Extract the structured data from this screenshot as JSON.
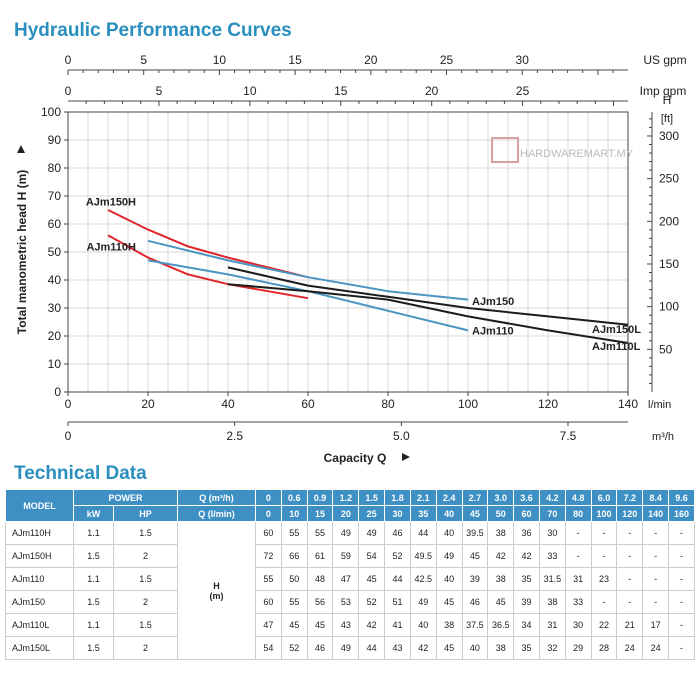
{
  "titles": {
    "curves": "Hydraulic Performance Curves",
    "tech": "Technical Data"
  },
  "watermark": "HARDWAREMART.MY",
  "chart_data": {
    "type": "line",
    "title": "Hydraulic Performance Curves",
    "xlabel": "Capacity Q",
    "ylabel": "Total manometric head H (m)",
    "x_unit": "l/min",
    "xlim": [
      0,
      140
    ],
    "ylim": [
      0,
      100
    ],
    "x_ticks": [
      0,
      20,
      40,
      60,
      80,
      100,
      120,
      140
    ],
    "y_ticks": [
      0,
      10,
      20,
      30,
      40,
      50,
      60,
      70,
      80,
      90,
      100
    ],
    "secondary_axes": {
      "us_gpm": {
        "label": "US gpm",
        "ticks": [
          0,
          5,
          10,
          15,
          20,
          25,
          30
        ],
        "factor": 3.785
      },
      "imp_gpm": {
        "label": "Imp gpm",
        "ticks": [
          0,
          5,
          10,
          15,
          20,
          25
        ],
        "factor": 4.546
      },
      "m3h": {
        "label": "m³/h",
        "ticks": [
          "0",
          "2.5",
          "5.0",
          "7.5"
        ],
        "values": [
          0,
          2.5,
          5,
          7.5
        ],
        "factor": 16.6667
      },
      "feet": {
        "label_top": "H",
        "label_bottom": "[ft]",
        "ticks": [
          50,
          100,
          150,
          200,
          250,
          300
        ],
        "factor": 0.3048
      }
    },
    "grid": true,
    "series": [
      {
        "name": "AJm150H",
        "color": "#e0262b",
        "x": [
          10,
          20,
          30,
          40,
          50,
          60
        ],
        "y": [
          65,
          58,
          52,
          48,
          44.5,
          41
        ]
      },
      {
        "name": "AJm110H",
        "color": "#e0262b",
        "x": [
          10,
          20,
          30,
          40,
          50,
          60
        ],
        "y": [
          56,
          48,
          42,
          38.5,
          36,
          33.5
        ]
      },
      {
        "name": "AJm150",
        "color": "#4b95c2",
        "x": [
          20,
          40,
          60,
          80,
          100
        ],
        "y": [
          54,
          47,
          41,
          36,
          33
        ]
      },
      {
        "name": "AJm110",
        "color": "#4b95c2",
        "x": [
          20,
          40,
          60,
          80,
          100
        ],
        "y": [
          47,
          42,
          36,
          29,
          22
        ]
      },
      {
        "name": "AJm150L",
        "color": "#1c1c1c",
        "x": [
          40,
          60,
          80,
          100,
          120,
          140
        ],
        "y": [
          44.5,
          38,
          34,
          30,
          27,
          24
        ]
      },
      {
        "name": "AJm110L",
        "color": "#1c1c1c",
        "x": [
          40,
          60,
          80,
          100,
          120,
          140
        ],
        "y": [
          38.5,
          36,
          33,
          27,
          22,
          17.5
        ]
      }
    ],
    "series_labels": [
      {
        "text": "AJm150H",
        "x": 17,
        "y": 68,
        "anchor": "end"
      },
      {
        "text": "AJm110H",
        "x": 17,
        "y": 52,
        "anchor": "end"
      },
      {
        "text": "AJm150",
        "x": 101,
        "y": 32.5,
        "anchor": "start"
      },
      {
        "text": "AJm110",
        "x": 101,
        "y": 22,
        "anchor": "start"
      },
      {
        "text": "AJm150L",
        "x": 131,
        "y": 22.5,
        "anchor": "start"
      },
      {
        "text": "AJm110L",
        "x": 131,
        "y": 16.5,
        "anchor": "start"
      }
    ]
  },
  "table": {
    "model_header": "MODEL",
    "power_header": "POWER",
    "kw_header": "kW",
    "hp_header": "HP",
    "q_m3h_header": "Q (m³/h)",
    "q_lmin_header": "Q (l/min)",
    "q_m3h": [
      "0",
      "0.6",
      "0.9",
      "1.2",
      "1.5",
      "1.8",
      "2.1",
      "2.4",
      "2.7",
      "3.0",
      "3.6",
      "4.2",
      "4.8",
      "6.0",
      "7.2",
      "8.4",
      "9.6"
    ],
    "q_lmin": [
      "0",
      "10",
      "15",
      "20",
      "25",
      "30",
      "35",
      "40",
      "45",
      "50",
      "60",
      "70",
      "80",
      "100",
      "120",
      "140",
      "160"
    ],
    "h_unit_top": "H",
    "h_unit_bottom": "(m)",
    "rows": [
      {
        "model": "AJm110H",
        "kw": "1.1",
        "hp": "1.5",
        "values": [
          "60",
          "55",
          "55",
          "49",
          "49",
          "46",
          "44",
          "40",
          "39.5",
          "38",
          "36",
          "30",
          "-",
          "-",
          "-",
          "-",
          "-"
        ]
      },
      {
        "model": "AJm150H",
        "kw": "1.5",
        "hp": "2",
        "values": [
          "72",
          "66",
          "61",
          "59",
          "54",
          "52",
          "49.5",
          "49",
          "45",
          "42",
          "42",
          "33",
          "-",
          "-",
          "-",
          "-",
          "-"
        ]
      },
      {
        "model": "AJm110",
        "kw": "1.1",
        "hp": "1.5",
        "values": [
          "55",
          "50",
          "48",
          "47",
          "45",
          "44",
          "42.5",
          "40",
          "39",
          "38",
          "35",
          "31.5",
          "31",
          "23",
          "-",
          "-",
          "-"
        ]
      },
      {
        "model": "AJm150",
        "kw": "1.5",
        "hp": "2",
        "values": [
          "60",
          "55",
          "56",
          "53",
          "52",
          "51",
          "49",
          "45",
          "46",
          "45",
          "39",
          "38",
          "33",
          "-",
          "-",
          "-",
          "-"
        ]
      },
      {
        "model": "AJm110L",
        "kw": "1.1",
        "hp": "1.5",
        "values": [
          "47",
          "45",
          "45",
          "43",
          "42",
          "41",
          "40",
          "38",
          "37.5",
          "36.5",
          "34",
          "31",
          "30",
          "22",
          "21",
          "17",
          "-"
        ]
      },
      {
        "model": "AJm150L",
        "kw": "1.5",
        "hp": "2",
        "values": [
          "54",
          "52",
          "46",
          "49",
          "44",
          "43",
          "42",
          "45",
          "40",
          "38",
          "35",
          "32",
          "29",
          "28",
          "24",
          "24",
          "-"
        ]
      }
    ]
  },
  "colors": {
    "title": "#2a8fbf",
    "table_header": "#3d8fc4",
    "grid": "#d9d9d9",
    "axis": "#444444"
  }
}
